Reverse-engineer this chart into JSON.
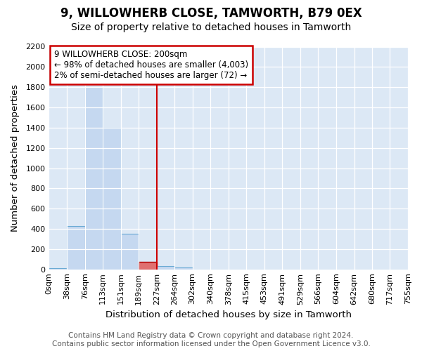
{
  "title1": "9, WILLOWHERB CLOSE, TAMWORTH, B79 0EX",
  "title2": "Size of property relative to detached houses in Tamworth",
  "xlabel": "Distribution of detached houses by size in Tamworth",
  "ylabel": "Number of detached properties",
  "footer1": "Contains HM Land Registry data © Crown copyright and database right 2024.",
  "footer2": "Contains public sector information licensed under the Open Government Licence v3.0.",
  "annotation_line1": "9 WILLOWHERB CLOSE: 200sqm",
  "annotation_line2": "← 98% of detached houses are smaller (4,003)",
  "annotation_line3": "2% of semi-detached houses are larger (72) →",
  "bin_edges": [
    0,
    38,
    76,
    113,
    151,
    189,
    227,
    264,
    302,
    340,
    378,
    415,
    453,
    491,
    529,
    566,
    604,
    642,
    680,
    717,
    755
  ],
  "bin_heights": [
    15,
    430,
    1800,
    1400,
    350,
    75,
    30,
    20,
    0,
    0,
    0,
    0,
    0,
    0,
    0,
    0,
    0,
    0,
    0,
    0
  ],
  "bar_color": "#c5d8f0",
  "bar_edgecolor": "#6aaad4",
  "highlight_bar_index": 5,
  "highlight_bar_color": "#e07070",
  "highlight_bar_edgecolor": "#b00000",
  "vline_x": 227,
  "vline_color": "#cc0000",
  "annotation_box_edgecolor": "#cc0000",
  "ylim": [
    0,
    2200
  ],
  "ytick_step": 200,
  "fig_background": "#ffffff",
  "plot_background": "#dce8f5",
  "grid_color": "#ffffff",
  "tick_label_fontsize": 8,
  "axis_label_fontsize": 9.5,
  "title1_fontsize": 12,
  "title2_fontsize": 10,
  "annotation_fontsize": 8.5,
  "footer_fontsize": 7.5
}
